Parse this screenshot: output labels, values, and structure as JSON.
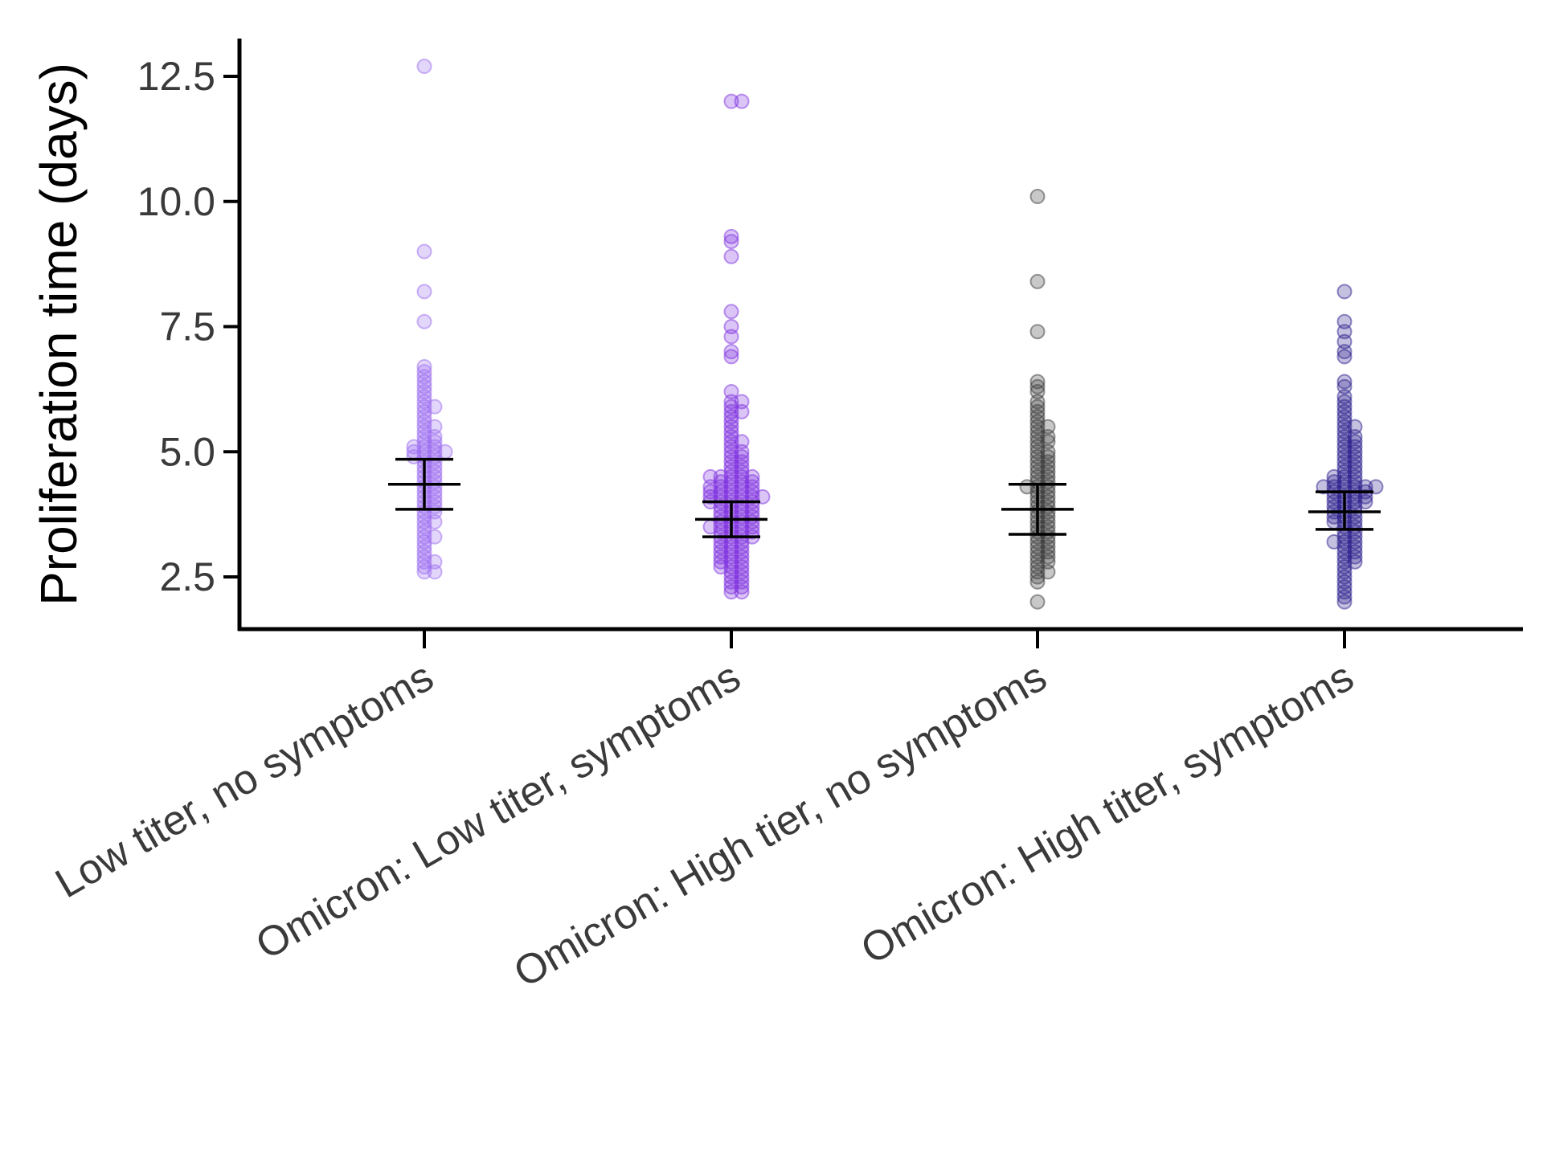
{
  "chart_data": {
    "type": "scatter",
    "subtype": "beeswarm with mean and 95% CI error bars",
    "title": "",
    "xlabel": "",
    "ylabel": "Proliferation time (days)",
    "ylim": [
      1.45,
      12.7
    ],
    "y_ticks": [
      2.5,
      5.0,
      7.5,
      10.0,
      12.5
    ],
    "y_tick_labels": [
      "2.5",
      "5.0",
      "7.5",
      "10.0",
      "12.5"
    ],
    "grid": false,
    "legend": "none",
    "categories": [
      "Low titer, no symptoms",
      "Omicron: Low titer, symptoms",
      "Omicron: High tier, no symptoms",
      "Omicron: High titer, symptoms"
    ],
    "series": [
      {
        "color": "#9B6BF0",
        "mean": 4.35,
        "ci_low": 3.85,
        "ci_high": 4.85,
        "values": [
          12.7,
          9.0,
          8.2,
          7.6,
          6.7,
          6.6,
          6.5,
          6.4,
          6.3,
          6.2,
          6.1,
          6.0,
          5.9,
          5.9,
          5.8,
          5.7,
          5.6,
          5.5,
          5.5,
          5.4,
          5.3,
          5.3,
          5.2,
          5.2,
          5.1,
          5.1,
          5.1,
          5.0,
          5.0,
          5.0,
          5.0,
          4.9,
          4.9,
          4.9,
          4.8,
          4.8,
          4.7,
          4.7,
          4.6,
          4.6,
          4.5,
          4.5,
          4.4,
          4.4,
          4.3,
          4.3,
          4.2,
          4.2,
          4.1,
          4.1,
          4.0,
          4.0,
          3.9,
          3.9,
          3.8,
          3.8,
          3.7,
          3.6,
          3.6,
          3.5,
          3.4,
          3.3,
          3.3,
          3.2,
          3.1,
          3.0,
          2.9,
          2.8,
          2.8,
          2.7,
          2.6,
          2.6
        ]
      },
      {
        "color": "#7E2FE0",
        "mean": 3.65,
        "ci_low": 3.3,
        "ci_high": 4.0,
        "values": [
          12.0,
          12.0,
          9.3,
          9.2,
          8.9,
          7.8,
          7.5,
          7.3,
          7.0,
          6.9,
          6.2,
          6.0,
          6.0,
          5.9,
          5.8,
          5.8,
          5.7,
          5.6,
          5.5,
          5.4,
          5.3,
          5.2,
          5.2,
          5.1,
          5.0,
          5.0,
          4.9,
          4.9,
          4.8,
          4.8,
          4.7,
          4.7,
          4.6,
          4.6,
          4.5,
          4.5,
          4.5,
          4.5,
          4.5,
          4.4,
          4.4,
          4.4,
          4.4,
          4.3,
          4.3,
          4.3,
          4.3,
          4.3,
          4.2,
          4.2,
          4.2,
          4.2,
          4.2,
          4.1,
          4.1,
          4.1,
          4.1,
          4.1,
          4.1,
          4.0,
          4.0,
          4.0,
          4.0,
          4.0,
          3.9,
          3.9,
          3.9,
          3.9,
          3.8,
          3.8,
          3.8,
          3.8,
          3.7,
          3.7,
          3.7,
          3.7,
          3.6,
          3.6,
          3.6,
          3.6,
          3.5,
          3.5,
          3.5,
          3.5,
          3.5,
          3.4,
          3.4,
          3.4,
          3.4,
          3.3,
          3.3,
          3.3,
          3.3,
          3.2,
          3.2,
          3.2,
          3.1,
          3.1,
          3.1,
          3.0,
          3.0,
          3.0,
          2.9,
          2.9,
          2.9,
          2.8,
          2.8,
          2.8,
          2.7,
          2.7,
          2.7,
          2.6,
          2.6,
          2.5,
          2.5,
          2.4,
          2.4,
          2.3,
          2.3,
          2.2,
          2.2
        ]
      },
      {
        "color": "#3A3A3A",
        "mean": 3.85,
        "ci_low": 3.35,
        "ci_high": 4.35,
        "values": [
          10.1,
          8.4,
          7.4,
          6.4,
          6.3,
          6.2,
          6.0,
          5.9,
          5.8,
          5.7,
          5.6,
          5.5,
          5.5,
          5.4,
          5.3,
          5.3,
          5.2,
          5.2,
          5.1,
          5.0,
          5.0,
          4.9,
          4.9,
          4.8,
          4.8,
          4.7,
          4.7,
          4.6,
          4.6,
          4.5,
          4.5,
          4.4,
          4.4,
          4.3,
          4.3,
          4.3,
          4.2,
          4.2,
          4.1,
          4.1,
          4.0,
          4.0,
          3.9,
          3.9,
          3.8,
          3.8,
          3.7,
          3.7,
          3.6,
          3.6,
          3.5,
          3.5,
          3.4,
          3.4,
          3.3,
          3.3,
          3.2,
          3.2,
          3.1,
          3.1,
          3.0,
          3.0,
          2.9,
          2.9,
          2.8,
          2.8,
          2.7,
          2.6,
          2.6,
          2.5,
          2.4,
          2.0
        ]
      },
      {
        "color": "#2A1E8C",
        "mean": 3.8,
        "ci_low": 3.45,
        "ci_high": 4.2,
        "values": [
          8.2,
          7.6,
          7.4,
          7.2,
          7.0,
          6.9,
          6.4,
          6.3,
          6.1,
          6.0,
          5.9,
          5.8,
          5.7,
          5.6,
          5.5,
          5.5,
          5.4,
          5.3,
          5.3,
          5.2,
          5.2,
          5.1,
          5.1,
          5.0,
          5.0,
          4.9,
          4.9,
          4.8,
          4.8,
          4.7,
          4.7,
          4.6,
          4.6,
          4.5,
          4.5,
          4.5,
          4.4,
          4.4,
          4.4,
          4.3,
          4.3,
          4.3,
          4.3,
          4.3,
          4.3,
          4.2,
          4.2,
          4.2,
          4.2,
          4.1,
          4.1,
          4.1,
          4.1,
          4.0,
          4.0,
          4.0,
          4.0,
          3.9,
          3.9,
          3.9,
          3.8,
          3.8,
          3.8,
          3.7,
          3.7,
          3.7,
          3.6,
          3.6,
          3.6,
          3.5,
          3.5,
          3.4,
          3.4,
          3.3,
          3.3,
          3.2,
          3.2,
          3.2,
          3.1,
          3.1,
          3.0,
          3.0,
          2.9,
          2.9,
          2.8,
          2.8,
          2.7,
          2.6,
          2.5,
          2.4,
          2.3,
          2.2,
          2.1,
          2.0
        ]
      }
    ]
  }
}
